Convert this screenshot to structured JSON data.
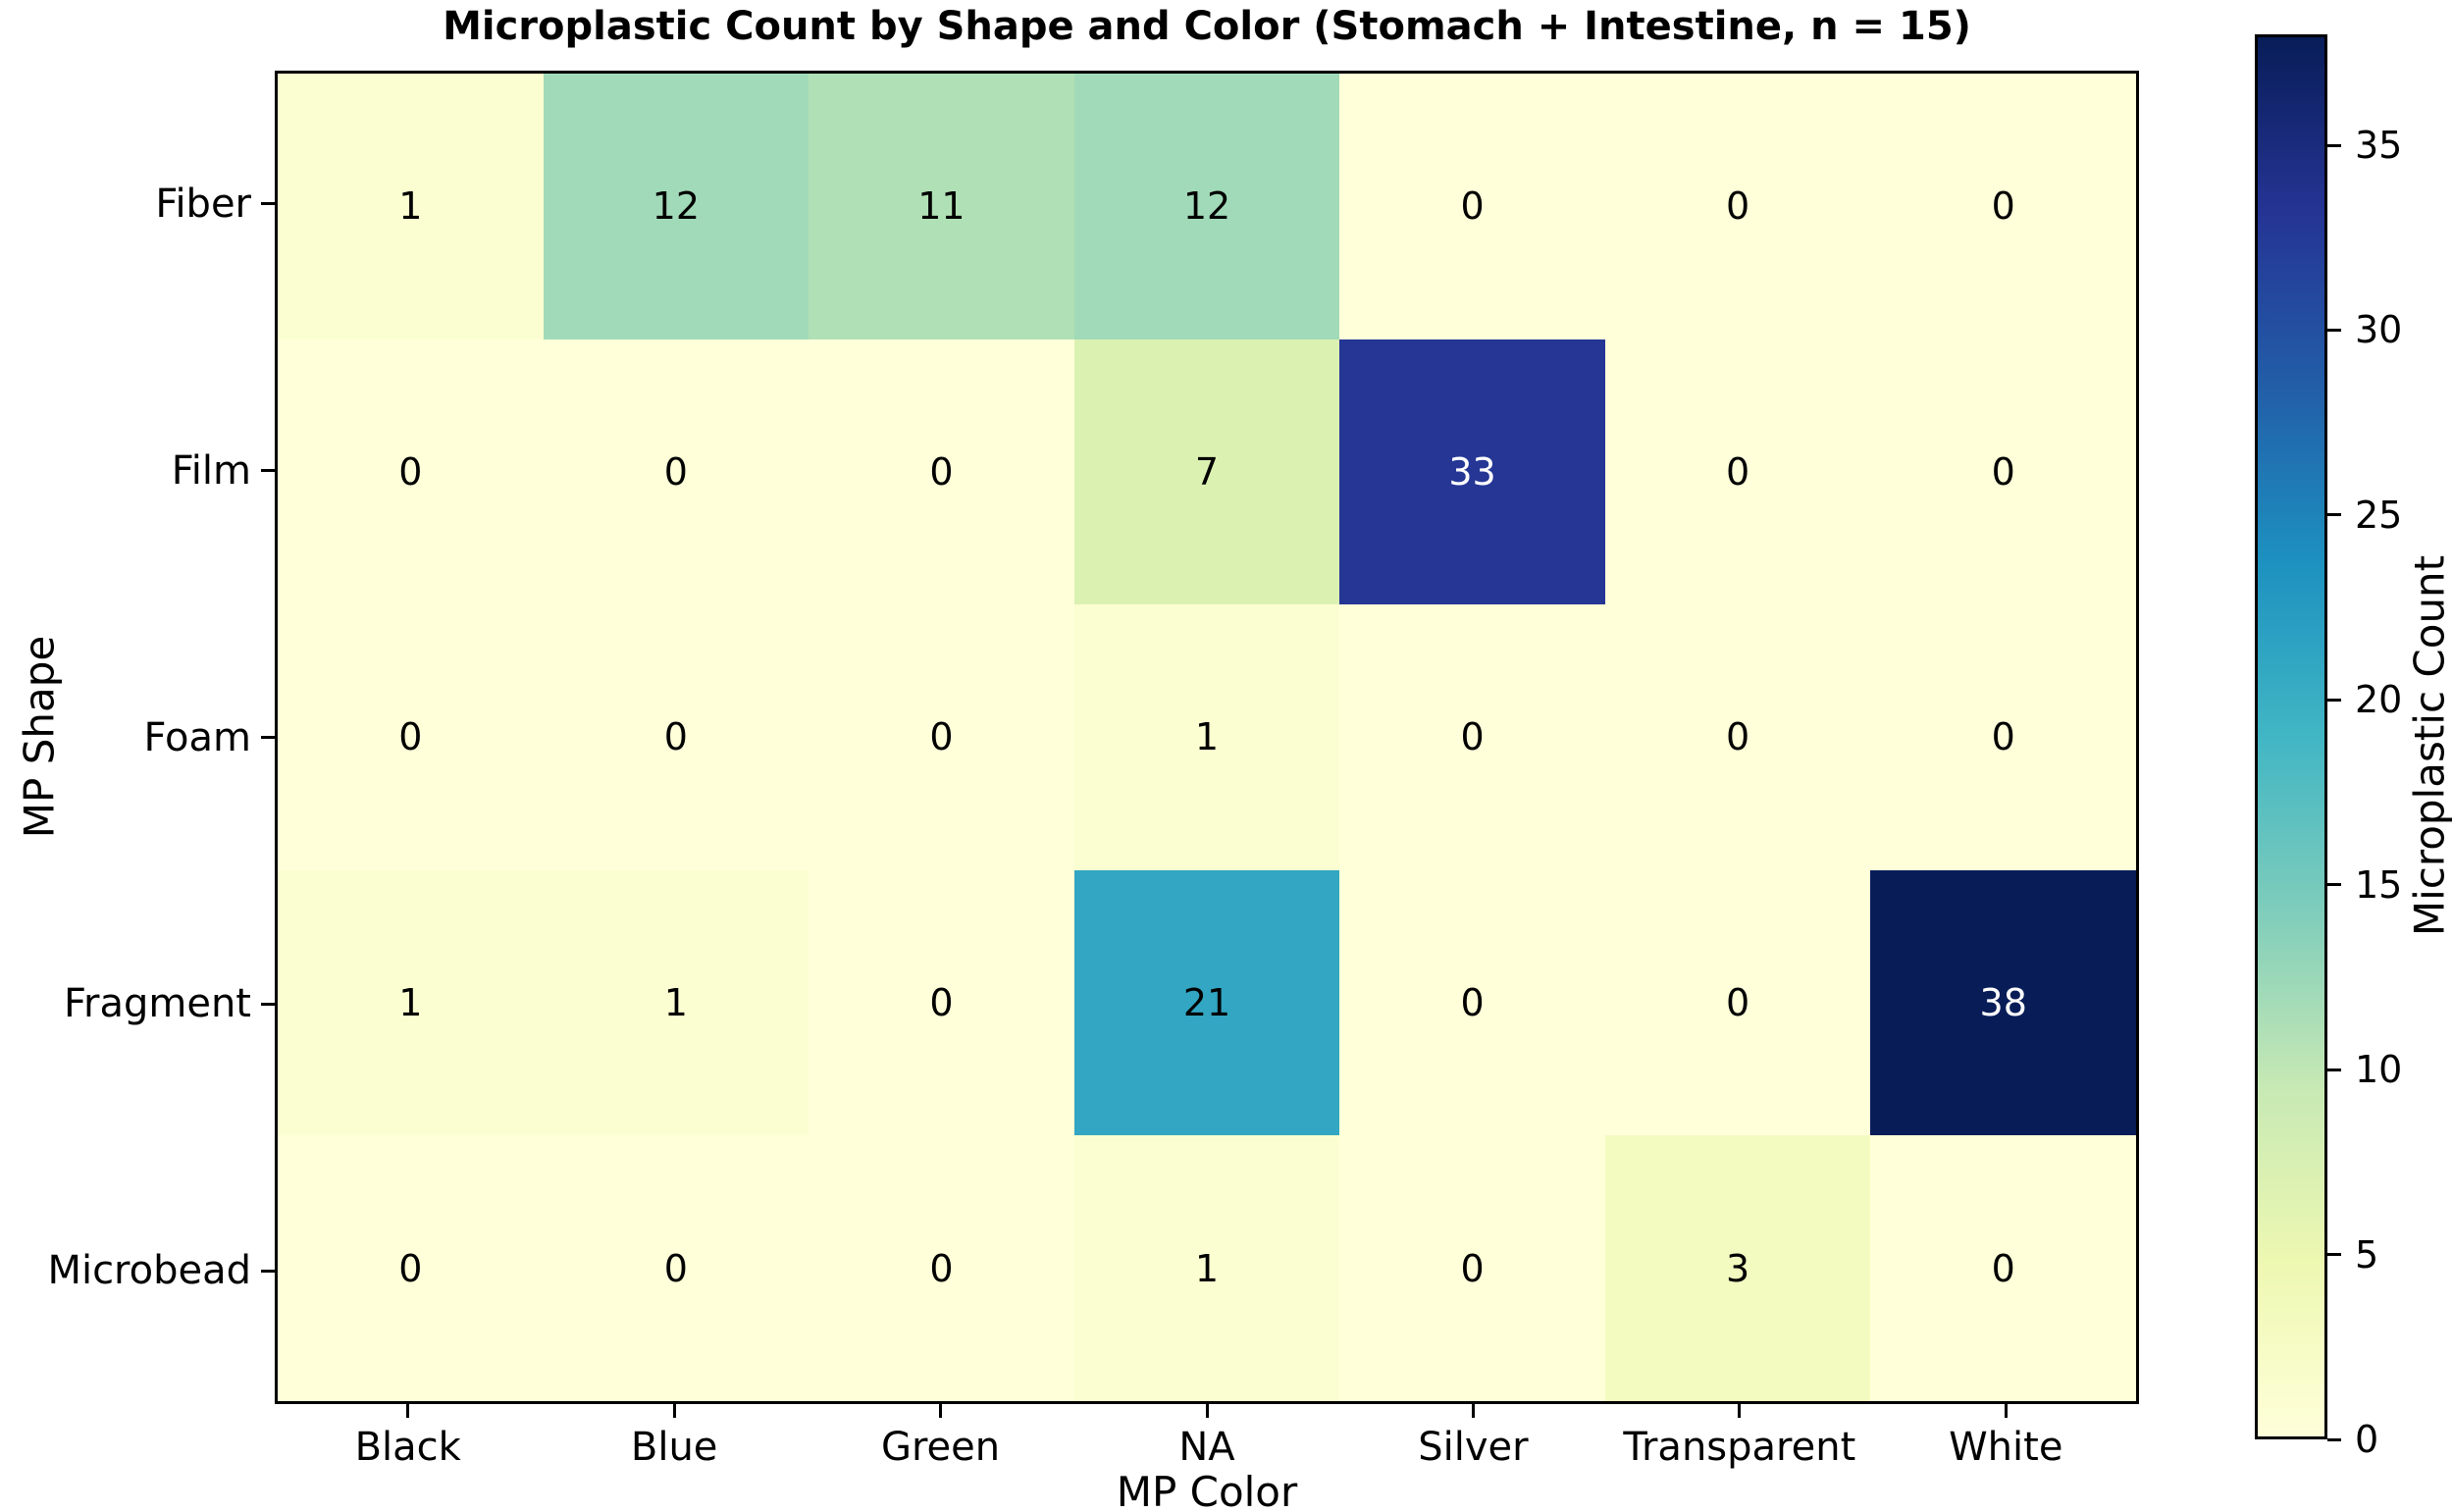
{
  "chart_data": {
    "type": "heatmap",
    "title": "Microplastic Count by Shape and Color (Stomach + Intestine, n = 15)",
    "xlabel": "MP Color",
    "ylabel": "MP Shape",
    "colorbar_label": "Microplastic Count",
    "columns": [
      "Black",
      "Blue",
      "Green",
      "NA",
      "Silver",
      "Transparent",
      "White"
    ],
    "rows": [
      "Fiber",
      "Film",
      "Foam",
      "Fragment",
      "Microbead"
    ],
    "values": [
      [
        1,
        12,
        11,
        12,
        0,
        0,
        0
      ],
      [
        0,
        0,
        0,
        7,
        33,
        0,
        0
      ],
      [
        0,
        0,
        0,
        1,
        0,
        0,
        0
      ],
      [
        1,
        1,
        0,
        21,
        0,
        0,
        38
      ],
      [
        0,
        0,
        0,
        1,
        0,
        3,
        0
      ]
    ],
    "vmin": 0,
    "vmax": 38,
    "colorbar_ticks": [
      0,
      5,
      10,
      15,
      20,
      25,
      30,
      35
    ],
    "colormap": {
      "name": "YlGnBu",
      "stops": [
        "#ffffd9",
        "#edf8b1",
        "#c7e9b4",
        "#7fcdbb",
        "#41b6c4",
        "#1d91c0",
        "#225ea8",
        "#253494",
        "#081d58"
      ]
    },
    "annotation_text_colors": {
      "light_cells": "#000000",
      "dark_cells": "#ffffff"
    },
    "grid": "off",
    "legend_position": "colorbar-right"
  }
}
